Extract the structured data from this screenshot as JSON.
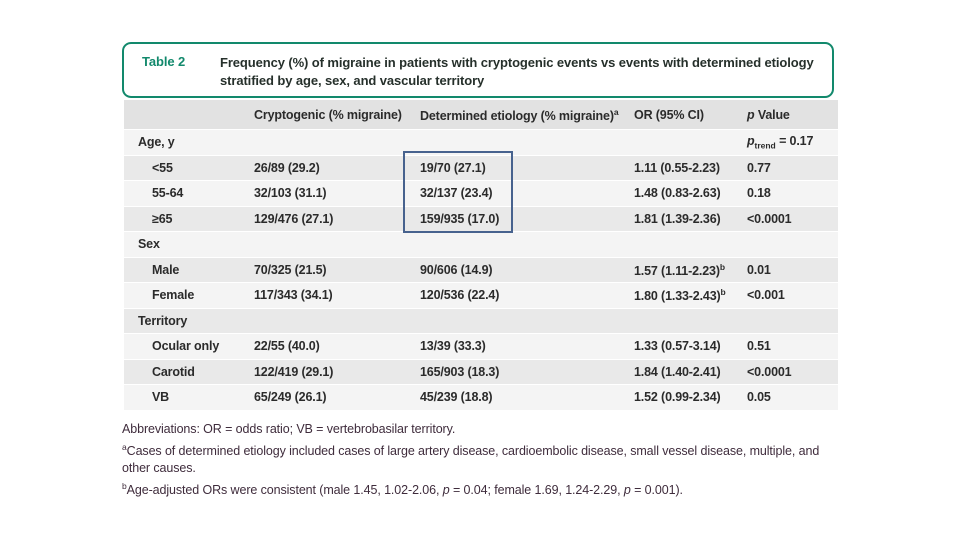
{
  "table": {
    "label": "Table 2",
    "caption": "Frequency (%) of migraine in patients with cryptogenic events vs events with determined etiology stratified by age, sex, and vascular territory",
    "columns": [
      "",
      "Cryptogenic (% migraine)",
      "Determined etiology (% migraine)^{a}",
      "OR (95% CI)",
      "*p* Value"
    ],
    "rows": [
      {
        "label": "Age, y",
        "type": "section",
        "cells": [
          "",
          "",
          "",
          "*p*_{trend} = 0.17"
        ]
      },
      {
        "label": "<55",
        "type": "item",
        "cells": [
          "26/89 (29.2)",
          "19/70 (27.1)",
          "1.11 (0.55-2.23)",
          "0.77"
        ]
      },
      {
        "label": "55-64",
        "type": "item",
        "cells": [
          "32/103 (31.1)",
          "32/137 (23.4)",
          "1.48 (0.83-2.63)",
          "0.18"
        ]
      },
      {
        "label": "≥65",
        "type": "item",
        "cells": [
          "129/476 (27.1)",
          "159/935 (17.0)",
          "1.81 (1.39-2.36)",
          "<0.0001"
        ]
      },
      {
        "label": "Sex",
        "type": "section",
        "cells": [
          "",
          "",
          "",
          ""
        ]
      },
      {
        "label": "Male",
        "type": "item",
        "cells": [
          "70/325 (21.5)",
          "90/606 (14.9)",
          "1.57 (1.11-2.23)^{b}",
          "0.01"
        ]
      },
      {
        "label": "Female",
        "type": "item",
        "cells": [
          "117/343 (34.1)",
          "120/536 (22.4)",
          "1.80 (1.33-2.43)^{b}",
          "<0.001"
        ]
      },
      {
        "label": "Territory",
        "type": "section",
        "cells": [
          "",
          "",
          "",
          ""
        ]
      },
      {
        "label": "Ocular only",
        "type": "item",
        "cells": [
          "22/55 (40.0)",
          "13/39 (33.3)",
          "1.33 (0.57-3.14)",
          "0.51"
        ]
      },
      {
        "label": "Carotid",
        "type": "item",
        "cells": [
          "122/419 (29.1)",
          "165/903 (18.3)",
          "1.84 (1.40-2.41)",
          "<0.0001"
        ]
      },
      {
        "label": "VB",
        "type": "item",
        "cells": [
          "65/249 (26.1)",
          "45/239 (18.8)",
          "1.52 (0.99-2.34)",
          "0.05"
        ]
      }
    ]
  },
  "footnotes": [
    "Abbreviations: OR = odds ratio; VB = vertebrobasilar territory.",
    "^{a}Cases of determined etiology included cases of large artery disease, cardioembolic disease, small vessel disease, multiple, and other causes.",
    "^{b}Age-adjusted ORs were consistent (male 1.45, 1.02-2.06, *p* = 0.04; female 1.69, 1.24-2.29, *p* = 0.001)."
  ],
  "colors": {
    "accent_green": "#12896c",
    "highlight_blue": "#47628e",
    "header_band": "#e2e2e2",
    "stripe_dark": "#e9e9e9",
    "stripe_light": "#f4f4f4",
    "footnote_text": "#3f2c3c"
  }
}
